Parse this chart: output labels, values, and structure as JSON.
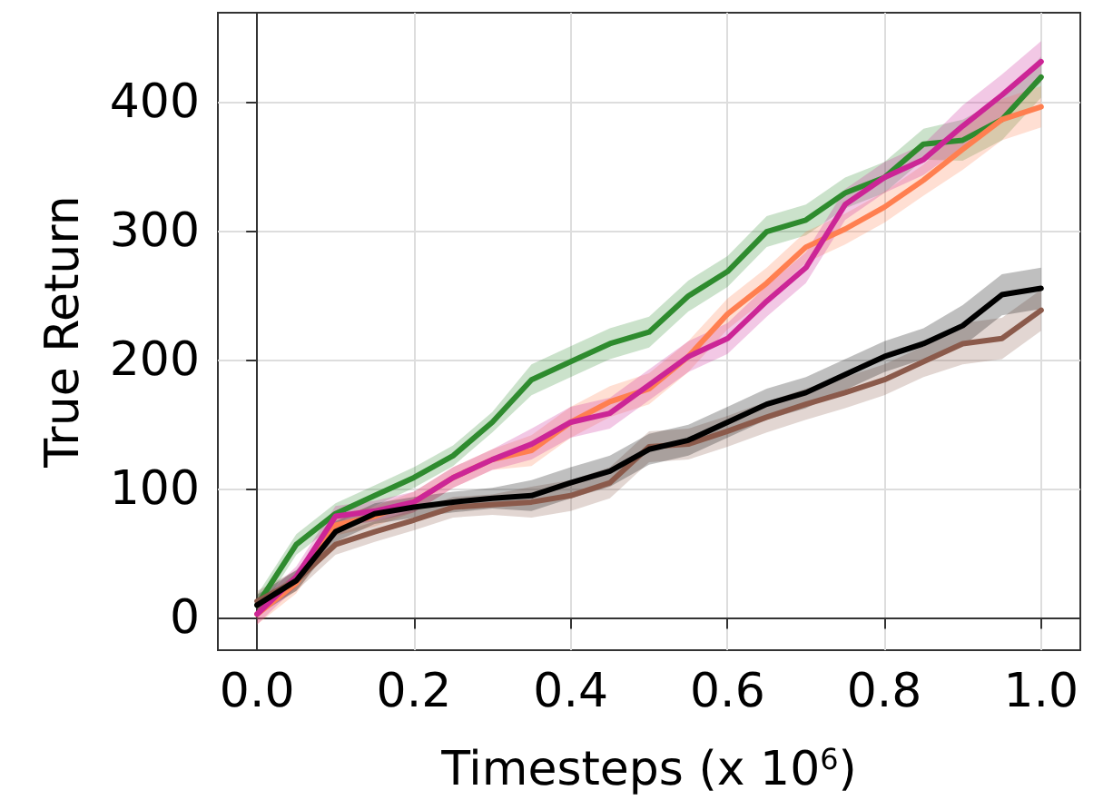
{
  "chart_data": {
    "type": "line",
    "xlabel": "Timesteps (x 10$^{6}$)",
    "ylabel": "True Return",
    "x": [
      0,
      0.05,
      0.1,
      0.15,
      0.2,
      0.25,
      0.3,
      0.35,
      0.4,
      0.45,
      0.5,
      0.55,
      0.6,
      0.65,
      0.7,
      0.75,
      0.8,
      0.85,
      0.9,
      0.95,
      1.0
    ],
    "xlim": [
      -0.05,
      1.05
    ],
    "xticks": [
      {
        "value": 0,
        "label": "0.0"
      },
      {
        "value": 0.2,
        "label": "0.2"
      },
      {
        "value": 0.4,
        "label": "0.4"
      },
      {
        "value": 0.6,
        "label": "0.6"
      },
      {
        "value": 0.8,
        "label": "0.8"
      },
      {
        "value": 1.0,
        "label": "1.0"
      }
    ],
    "ylim": [
      -25,
      470
    ],
    "yticks": [
      0,
      100,
      200,
      300,
      400
    ],
    "grid": true,
    "line_style": "solid",
    "series": [
      {
        "color": "#2e8b2e",
        "values": [
          10,
          57,
          81,
          95,
          109,
          126,
          152,
          185,
          199,
          213,
          222,
          250,
          269,
          300,
          309,
          330,
          342,
          368,
          371,
          387,
          420
        ],
        "lower": [
          2,
          49,
          73,
          87,
          101,
          118,
          144,
          173,
          187,
          201,
          210,
          238,
          257,
          288,
          297,
          318,
          330,
          356,
          355,
          371,
          404
        ],
        "upper": [
          18,
          65,
          89,
          103,
          117,
          134,
          160,
          197,
          211,
          225,
          234,
          262,
          281,
          312,
          321,
          342,
          354,
          380,
          387,
          403,
          436
        ]
      },
      {
        "color": "#ff7f50",
        "values": [
          3,
          27,
          72,
          79,
          90,
          109,
          123,
          130,
          152,
          168,
          178,
          203,
          236,
          260,
          288,
          302,
          319,
          340,
          364,
          387,
          397
        ],
        "lower": [
          -5,
          19,
          64,
          71,
          82,
          101,
          115,
          118,
          140,
          156,
          166,
          191,
          224,
          248,
          276,
          290,
          307,
          328,
          348,
          371,
          381
        ],
        "upper": [
          11,
          35,
          80,
          87,
          98,
          117,
          131,
          142,
          164,
          180,
          190,
          215,
          248,
          272,
          300,
          314,
          331,
          352,
          380,
          403,
          413
        ]
      },
      {
        "color": "#cc2596",
        "values": [
          3,
          32,
          79,
          83,
          90,
          109,
          123,
          135,
          152,
          159,
          181,
          203,
          217,
          246,
          272,
          321,
          342,
          356,
          382,
          406,
          432
        ],
        "lower": [
          -5,
          24,
          71,
          75,
          82,
          101,
          115,
          123,
          140,
          147,
          169,
          191,
          205,
          234,
          260,
          309,
          330,
          344,
          366,
          390,
          416
        ],
        "upper": [
          11,
          40,
          87,
          91,
          98,
          117,
          131,
          147,
          164,
          171,
          193,
          215,
          229,
          258,
          284,
          333,
          354,
          368,
          398,
          422,
          448
        ]
      },
      {
        "color": "#8b5a4b",
        "values": [
          13,
          29,
          57,
          67,
          76,
          86,
          88,
          90,
          95,
          105,
          133,
          135,
          145,
          156,
          166,
          175,
          185,
          199,
          213,
          217,
          239
        ],
        "lower": [
          5,
          21,
          49,
          59,
          68,
          78,
          80,
          78,
          83,
          93,
          121,
          123,
          133,
          144,
          154,
          163,
          173,
          187,
          197,
          201,
          223
        ],
        "upper": [
          21,
          37,
          65,
          75,
          84,
          94,
          96,
          102,
          107,
          117,
          145,
          147,
          157,
          168,
          178,
          187,
          197,
          211,
          229,
          233,
          255
        ]
      },
      {
        "color": "#000000",
        "values": [
          10,
          29,
          67,
          81,
          86,
          90,
          93,
          95,
          105,
          114,
          131,
          138,
          152,
          166,
          175,
          189,
          203,
          213,
          227,
          251,
          256
        ],
        "lower": [
          2,
          21,
          59,
          73,
          78,
          82,
          85,
          83,
          93,
          102,
          119,
          126,
          140,
          154,
          163,
          177,
          191,
          201,
          211,
          235,
          240
        ],
        "upper": [
          18,
          37,
          75,
          89,
          94,
          98,
          101,
          107,
          117,
          126,
          143,
          150,
          164,
          178,
          187,
          201,
          215,
          225,
          243,
          267,
          272
        ]
      }
    ]
  }
}
